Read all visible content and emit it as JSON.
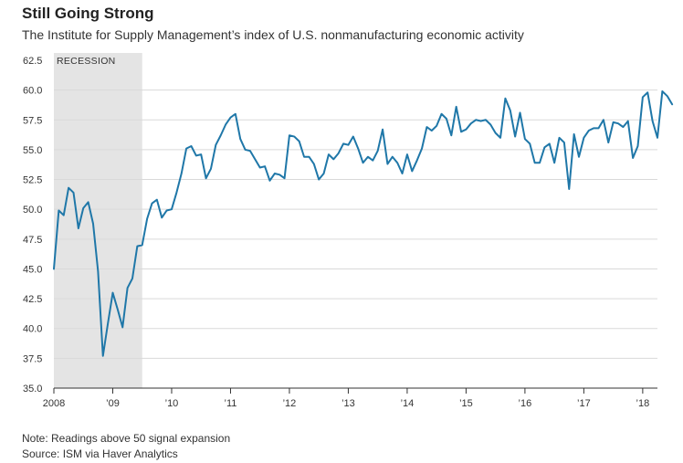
{
  "header": {
    "title": "Still Going Strong",
    "subtitle": "The Institute for Supply Management’s index of U.S. nonmanufacturing economic activity"
  },
  "footer": {
    "note": "Note: Readings above 50 signal expansion",
    "source": "Source: ISM via Haver Analytics"
  },
  "colors": {
    "line": "#1f77a8",
    "recession": "#e4e4e4",
    "grid": "#d9d9d9",
    "axis": "#333333"
  },
  "chart_data": {
    "type": "line",
    "title": "Still Going Strong",
    "subtitle": "The Institute for Supply Management’s index of U.S. nonmanufacturing economic activity",
    "xlabel": "",
    "ylabel": "",
    "ylim": [
      35.0,
      62.5
    ],
    "yticks": [
      "62.5",
      "60.0",
      "57.5",
      "55.0",
      "52.5",
      "50.0",
      "47.5",
      "45.0",
      "42.5",
      "40.0",
      "37.5",
      "35.0"
    ],
    "xtick_labels": [
      "2008",
      "’09",
      "’10",
      "’11",
      "’12",
      "’13",
      "’14",
      "’15",
      "’16",
      "’17",
      "’18"
    ],
    "grid": true,
    "annotation": {
      "label": "RECESSION",
      "start": "2008-01",
      "end": "2009-06"
    },
    "series": [
      {
        "start": "2008-01",
        "frequency": "monthly",
        "values": [
          45.0,
          49.9,
          49.5,
          51.8,
          51.4,
          48.4,
          50.1,
          50.6,
          48.8,
          44.8,
          37.7,
          40.4,
          43.0,
          41.6,
          40.1,
          43.4,
          44.2,
          46.9,
          47.0,
          49.2,
          50.5,
          50.8,
          49.3,
          49.9,
          50.0,
          51.4,
          53.0,
          55.1,
          55.3,
          54.5,
          54.6,
          52.6,
          53.4,
          55.4,
          56.2,
          57.1,
          57.7,
          58.0,
          55.9,
          55.0,
          54.9,
          54.2,
          53.5,
          53.6,
          52.4,
          53.0,
          52.9,
          52.6,
          56.2,
          56.1,
          55.7,
          54.4,
          54.4,
          53.8,
          52.5,
          53.0,
          54.6,
          54.2,
          54.7,
          55.5,
          55.4,
          56.1,
          55.1,
          53.9,
          54.4,
          54.1,
          54.9,
          56.7,
          53.8,
          54.4,
          53.9,
          53.0,
          54.6,
          53.2,
          54.1,
          55.1,
          56.9,
          56.6,
          57.0,
          58.0,
          57.6,
          56.2,
          58.6,
          56.5,
          56.7,
          57.2,
          57.5,
          57.4,
          57.5,
          57.1,
          56.4,
          56.0,
          59.3,
          58.3,
          56.1,
          58.1,
          55.9,
          55.5,
          53.9,
          53.9,
          55.2,
          55.5,
          53.9,
          56.0,
          55.6,
          51.7,
          56.3,
          54.4,
          56.0,
          56.6,
          56.8,
          56.8,
          57.5,
          55.6,
          57.3,
          57.2,
          56.9,
          57.4,
          54.3,
          55.3,
          59.4,
          59.8,
          57.4,
          56.0,
          59.9,
          59.5,
          58.8
        ]
      }
    ]
  }
}
